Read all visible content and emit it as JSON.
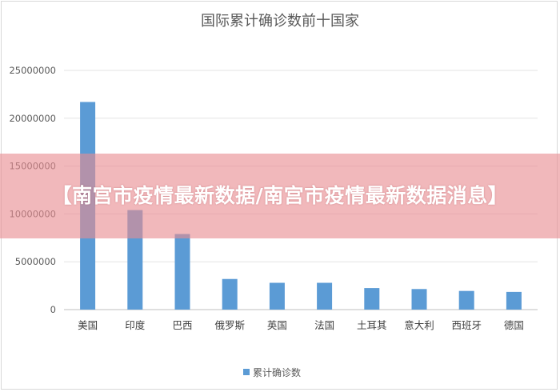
{
  "banner": {
    "text": "【南宫市疫情最新数据/南宫市疫情最新数据消息】"
  },
  "chart_data": {
    "type": "bar",
    "title": "国际累计确诊数前十国家",
    "categories": [
      "美国",
      "印度",
      "巴西",
      "俄罗斯",
      "英国",
      "法国",
      "土耳其",
      "意大利",
      "西班牙",
      "德国"
    ],
    "series": [
      {
        "name": "累计确诊数",
        "color": "#5b9bd5",
        "values": [
          21700000,
          10400000,
          7900000,
          3200000,
          2800000,
          2800000,
          2250000,
          2150000,
          1950000,
          1850000
        ]
      }
    ],
    "yticks": [
      "0",
      "5000000",
      "10000000",
      "15000000",
      "20000000",
      "25000000"
    ],
    "ylim": [
      0,
      25000000
    ],
    "grid": true,
    "legend": "bottom"
  }
}
